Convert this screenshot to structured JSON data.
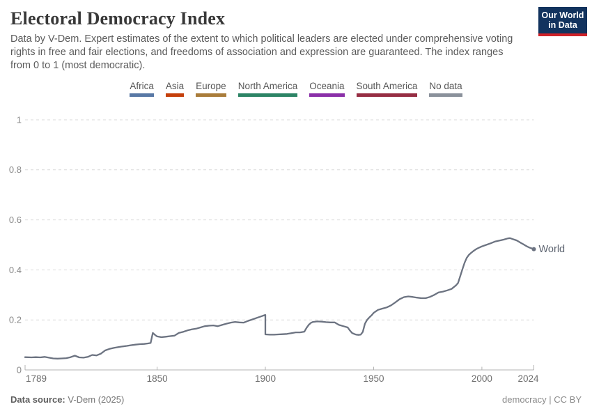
{
  "header": {
    "title": "Electoral Democracy Index",
    "subtitle": "Data by V-Dem. Expert estimates of the extent to which political leaders are elected under comprehensive voting rights in free and fair elections, and freedoms of association and expression are guaranteed. The index ranges from 0 to 1 (most democratic)."
  },
  "logo": {
    "line1": "Our World",
    "line2": "in Data",
    "bg_color": "#12335e",
    "accent_color": "#cf2128"
  },
  "legend": {
    "items": [
      {
        "label": "Africa",
        "color": "#5878a5"
      },
      {
        "label": "Asia",
        "color": "#c53f0b"
      },
      {
        "label": "Europe",
        "color": "#a97c3a"
      },
      {
        "label": "North America",
        "color": "#2c8465"
      },
      {
        "label": "Oceania",
        "color": "#8a2fa8"
      },
      {
        "label": "South America",
        "color": "#962d43"
      },
      {
        "label": "No data",
        "color": "#8a919b"
      }
    ]
  },
  "chart_data": {
    "type": "line",
    "title": "Electoral Democracy Index",
    "xlabel": "",
    "ylabel": "",
    "xlim": [
      1789,
      2024
    ],
    "ylim": [
      0,
      1
    ],
    "x_ticks": [
      1789,
      1850,
      1900,
      1950,
      2000,
      2024
    ],
    "y_ticks": [
      0,
      0.2,
      0.4,
      0.6,
      0.8,
      1
    ],
    "grid": "horizontal-dashed",
    "legend_position": "end-of-line",
    "axis_colors": {
      "grid": "#d9d9d9",
      "axis": "#b3b3b3",
      "y_label": "#8b8b8b",
      "x_label": "#6e6e6e"
    },
    "series": [
      {
        "name": "World",
        "color": "#6c7381",
        "label_color": "#5d6470",
        "points": [
          [
            1789,
            0.051
          ],
          [
            1792,
            0.05
          ],
          [
            1794,
            0.051
          ],
          [
            1796,
            0.05
          ],
          [
            1798,
            0.052
          ],
          [
            1800,
            0.049
          ],
          [
            1802,
            0.046
          ],
          [
            1804,
            0.045
          ],
          [
            1806,
            0.046
          ],
          [
            1808,
            0.047
          ],
          [
            1810,
            0.051
          ],
          [
            1812,
            0.057
          ],
          [
            1814,
            0.05
          ],
          [
            1816,
            0.049
          ],
          [
            1818,
            0.052
          ],
          [
            1820,
            0.06
          ],
          [
            1822,
            0.058
          ],
          [
            1824,
            0.065
          ],
          [
            1826,
            0.078
          ],
          [
            1828,
            0.084
          ],
          [
            1830,
            0.088
          ],
          [
            1832,
            0.091
          ],
          [
            1834,
            0.094
          ],
          [
            1836,
            0.096
          ],
          [
            1838,
            0.099
          ],
          [
            1840,
            0.101
          ],
          [
            1842,
            0.103
          ],
          [
            1844,
            0.104
          ],
          [
            1846,
            0.106
          ],
          [
            1847,
            0.108
          ],
          [
            1848,
            0.148
          ],
          [
            1849,
            0.14
          ],
          [
            1850,
            0.134
          ],
          [
            1852,
            0.131
          ],
          [
            1854,
            0.133
          ],
          [
            1856,
            0.135
          ],
          [
            1858,
            0.137
          ],
          [
            1860,
            0.148
          ],
          [
            1862,
            0.152
          ],
          [
            1864,
            0.158
          ],
          [
            1866,
            0.162
          ],
          [
            1868,
            0.165
          ],
          [
            1870,
            0.17
          ],
          [
            1872,
            0.175
          ],
          [
            1874,
            0.177
          ],
          [
            1876,
            0.178
          ],
          [
            1878,
            0.175
          ],
          [
            1880,
            0.18
          ],
          [
            1882,
            0.185
          ],
          [
            1884,
            0.189
          ],
          [
            1886,
            0.192
          ],
          [
            1888,
            0.19
          ],
          [
            1890,
            0.189
          ],
          [
            1892,
            0.196
          ],
          [
            1894,
            0.202
          ],
          [
            1896,
            0.208
          ],
          [
            1898,
            0.214
          ],
          [
            1900,
            0.22
          ],
          [
            1900,
            0.142
          ],
          [
            1902,
            0.141
          ],
          [
            1904,
            0.141
          ],
          [
            1906,
            0.142
          ],
          [
            1908,
            0.143
          ],
          [
            1910,
            0.144
          ],
          [
            1912,
            0.147
          ],
          [
            1914,
            0.15
          ],
          [
            1916,
            0.15
          ],
          [
            1918,
            0.153
          ],
          [
            1919,
            0.168
          ],
          [
            1920,
            0.18
          ],
          [
            1921,
            0.188
          ],
          [
            1922,
            0.192
          ],
          [
            1924,
            0.194
          ],
          [
            1926,
            0.193
          ],
          [
            1928,
            0.191
          ],
          [
            1930,
            0.19
          ],
          [
            1932,
            0.19
          ],
          [
            1934,
            0.18
          ],
          [
            1936,
            0.175
          ],
          [
            1938,
            0.17
          ],
          [
            1939,
            0.158
          ],
          [
            1940,
            0.148
          ],
          [
            1941,
            0.144
          ],
          [
            1942,
            0.141
          ],
          [
            1943,
            0.14
          ],
          [
            1944,
            0.141
          ],
          [
            1945,
            0.152
          ],
          [
            1946,
            0.185
          ],
          [
            1947,
            0.2
          ],
          [
            1948,
            0.21
          ],
          [
            1949,
            0.218
          ],
          [
            1950,
            0.228
          ],
          [
            1952,
            0.24
          ],
          [
            1954,
            0.245
          ],
          [
            1956,
            0.25
          ],
          [
            1958,
            0.258
          ],
          [
            1960,
            0.27
          ],
          [
            1962,
            0.283
          ],
          [
            1964,
            0.291
          ],
          [
            1966,
            0.294
          ],
          [
            1968,
            0.292
          ],
          [
            1970,
            0.289
          ],
          [
            1972,
            0.287
          ],
          [
            1974,
            0.287
          ],
          [
            1976,
            0.292
          ],
          [
            1978,
            0.3
          ],
          [
            1980,
            0.31
          ],
          [
            1982,
            0.313
          ],
          [
            1984,
            0.318
          ],
          [
            1986,
            0.324
          ],
          [
            1988,
            0.338
          ],
          [
            1989,
            0.348
          ],
          [
            1990,
            0.375
          ],
          [
            1991,
            0.402
          ],
          [
            1992,
            0.428
          ],
          [
            1993,
            0.448
          ],
          [
            1994,
            0.46
          ],
          [
            1995,
            0.468
          ],
          [
            1996,
            0.475
          ],
          [
            1997,
            0.481
          ],
          [
            1998,
            0.486
          ],
          [
            1999,
            0.49
          ],
          [
            2000,
            0.494
          ],
          [
            2002,
            0.5
          ],
          [
            2004,
            0.506
          ],
          [
            2006,
            0.513
          ],
          [
            2008,
            0.517
          ],
          [
            2010,
            0.521
          ],
          [
            2012,
            0.526
          ],
          [
            2013,
            0.527
          ],
          [
            2014,
            0.524
          ],
          [
            2015,
            0.521
          ],
          [
            2016,
            0.518
          ],
          [
            2017,
            0.513
          ],
          [
            2018,
            0.508
          ],
          [
            2019,
            0.503
          ],
          [
            2020,
            0.498
          ],
          [
            2021,
            0.493
          ],
          [
            2022,
            0.489
          ],
          [
            2023,
            0.486
          ],
          [
            2024,
            0.483
          ]
        ]
      }
    ]
  },
  "footer": {
    "datasource_label": "Data source:",
    "datasource_value": "V-Dem (2025)",
    "slug": "democracy",
    "separator": "|",
    "license": "CC BY"
  }
}
